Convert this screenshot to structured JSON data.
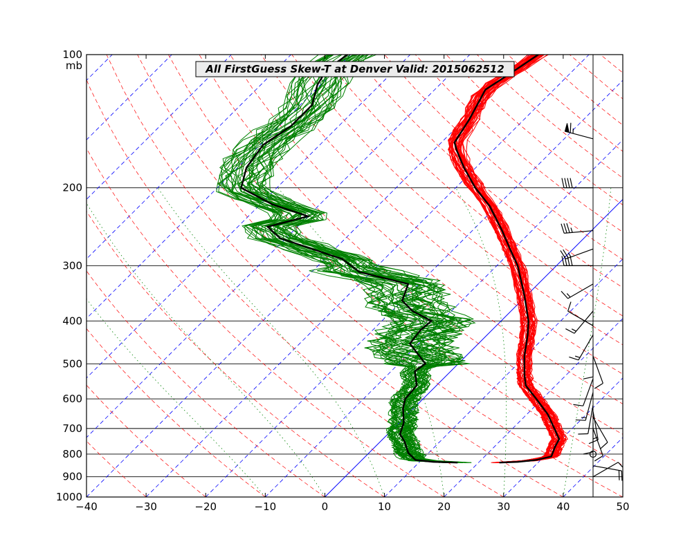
{
  "chart_data": {
    "type": "skew-t",
    "title": "All FirstGuess  Skew-T at Denver   Valid: 2015062512",
    "ylabel": "mb",
    "xlim": [
      -40,
      50
    ],
    "plim": [
      1000,
      100
    ],
    "x_ticks": [
      "−40",
      "−30",
      "−20",
      "−10",
      "0",
      "10",
      "20",
      "30",
      "40",
      "50"
    ],
    "x_tick_values": [
      -40,
      -30,
      -20,
      -10,
      0,
      10,
      20,
      30,
      40,
      50
    ],
    "p_ticks": [
      100,
      200,
      300,
      400,
      500,
      600,
      700,
      800,
      900,
      1000
    ],
    "p_tick_labels": [
      "100",
      "200",
      "300",
      "400",
      "500",
      "600",
      "700",
      "800",
      "900",
      "1000"
    ],
    "isotherm_spacing_c": 10,
    "colors": {
      "ensemble_temperature": "#ff0000",
      "ensemble_dewpoint": "#008000",
      "mean_profile": "#000000",
      "isotherm_dashed": "#0000ff",
      "zero_isotherm": "#0000ff",
      "dry_adiabat": "#ff0000",
      "moist_adiabat": "#008000",
      "isobar": "#000000"
    },
    "ensemble_members": 40,
    "mean_temperature": [
      {
        "p": 836,
        "t": 23.5
      },
      {
        "p": 833,
        "t": 26.5
      },
      {
        "p": 825,
        "t": 29.2
      },
      {
        "p": 810,
        "t": 31.2
      },
      {
        "p": 770,
        "t": 30.2
      },
      {
        "p": 740,
        "t": 29.6
      },
      {
        "p": 700,
        "t": 27.0
      },
      {
        "p": 650,
        "t": 23.5
      },
      {
        "p": 600,
        "t": 19.0
      },
      {
        "p": 560,
        "t": 15.0
      },
      {
        "p": 530,
        "t": 13.0
      },
      {
        "p": 480,
        "t": 9.8
      },
      {
        "p": 430,
        "t": 6.8
      },
      {
        "p": 400,
        "t": 4.6
      },
      {
        "p": 350,
        "t": -0.4
      },
      {
        "p": 300,
        "t": -6.5
      },
      {
        "p": 275,
        "t": -10.6
      },
      {
        "p": 250,
        "t": -15.0
      },
      {
        "p": 220,
        "t": -21.2
      },
      {
        "p": 200,
        "t": -26.7
      },
      {
        "p": 180,
        "t": -32.0
      },
      {
        "p": 165,
        "t": -36.0
      },
      {
        "p": 158,
        "t": -37.8
      },
      {
        "p": 140,
        "t": -39.2
      },
      {
        "p": 120,
        "t": -41.5
      },
      {
        "p": 110,
        "t": -40.0
      },
      {
        "p": 100,
        "t": -38.5
      }
    ],
    "mean_dewpoint": [
      {
        "p": 836,
        "t": 16.5
      },
      {
        "p": 833,
        "t": 12.3
      },
      {
        "p": 825,
        "t": 9.0
      },
      {
        "p": 795,
        "t": 6.6
      },
      {
        "p": 750,
        "t": 4.1
      },
      {
        "p": 720,
        "t": 2.0
      },
      {
        "p": 680,
        "t": 0.8
      },
      {
        "p": 630,
        "t": -1.8
      },
      {
        "p": 600,
        "t": -3.0
      },
      {
        "p": 560,
        "t": -3.3
      },
      {
        "p": 520,
        "t": -6.0
      },
      {
        "p": 500,
        "t": -5.5
      },
      {
        "p": 450,
        "t": -11.5
      },
      {
        "p": 420,
        "t": -12.0
      },
      {
        "p": 400,
        "t": -11.7
      },
      {
        "p": 380,
        "t": -16.5
      },
      {
        "p": 360,
        "t": -20.0
      },
      {
        "p": 330,
        "t": -21.8
      },
      {
        "p": 310,
        "t": -32.0
      },
      {
        "p": 290,
        "t": -37.0
      },
      {
        "p": 260,
        "t": -51.0
      },
      {
        "p": 245,
        "t": -55.0
      },
      {
        "p": 232,
        "t": -50.0
      },
      {
        "p": 218,
        "t": -58.0
      },
      {
        "p": 200,
        "t": -66.0
      },
      {
        "p": 180,
        "t": -68.5
      },
      {
        "p": 160,
        "t": -69.5
      },
      {
        "p": 145,
        "t": -68.0
      },
      {
        "p": 130,
        "t": -68.0
      },
      {
        "p": 117,
        "t": -70.5
      },
      {
        "p": 108,
        "t": -71.5
      },
      {
        "p": 100,
        "t": -70.5
      }
    ],
    "wind_barbs": [
      {
        "p": 155,
        "dir_deg": 285,
        "kt": 65
      },
      {
        "p": 200,
        "dir_deg": 270,
        "kt": 40
      },
      {
        "p": 250,
        "dir_deg": 265,
        "kt": 35
      },
      {
        "p": 275,
        "dir_deg": 250,
        "kt": 25
      },
      {
        "p": 300,
        "dir_deg": 270,
        "kt": 40
      },
      {
        "p": 330,
        "dir_deg": 240,
        "kt": 15
      },
      {
        "p": 380,
        "dir_deg": 220,
        "kt": 15
      },
      {
        "p": 410,
        "dir_deg": 300,
        "kt": 10
      },
      {
        "p": 430,
        "dir_deg": 210,
        "kt": 15
      },
      {
        "p": 460,
        "dir_deg": 180,
        "kt": 10
      },
      {
        "p": 480,
        "dir_deg": 160,
        "kt": 10
      },
      {
        "p": 540,
        "dir_deg": 200,
        "kt": 10
      },
      {
        "p": 580,
        "dir_deg": 195,
        "kt": 15
      },
      {
        "p": 620,
        "dir_deg": 190,
        "kt": 10
      },
      {
        "p": 640,
        "dir_deg": 170,
        "kt": 15
      },
      {
        "p": 660,
        "dir_deg": 150,
        "kt": 10
      },
      {
        "p": 680,
        "dir_deg": 180,
        "kt": 10
      },
      {
        "p": 700,
        "dir_deg": 160,
        "kt": 10
      },
      {
        "p": 800,
        "dir_deg": 0,
        "kt": 0
      },
      {
        "p": 850,
        "dir_deg": 100,
        "kt": 20
      },
      {
        "p": 900,
        "dir_deg": 60,
        "kt": 10
      }
    ]
  }
}
